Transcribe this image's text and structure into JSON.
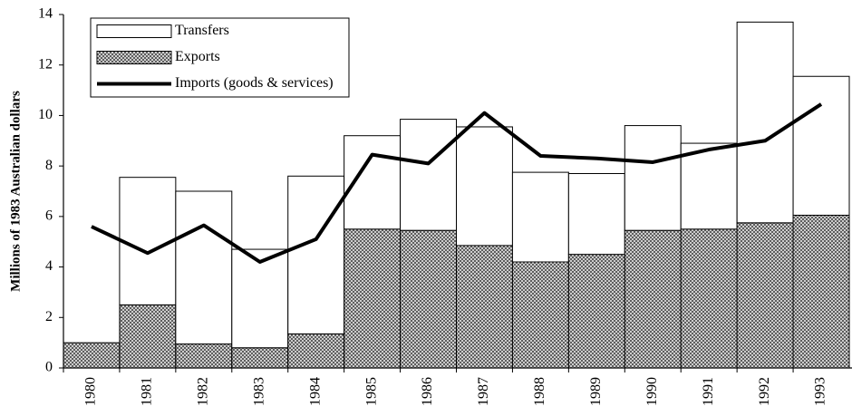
{
  "chart_data": {
    "type": "stacked_bar_line",
    "y_label": "Millions of 1983 Australian dollars",
    "categories": [
      "1980",
      "1981",
      "1982",
      "1983",
      "1984",
      "1985",
      "1986",
      "1987",
      "1988",
      "1989",
      "1990",
      "1991",
      "1992",
      "1993"
    ],
    "series": [
      {
        "name": "Transfers",
        "color": "#ffffff",
        "kind": "bar",
        "values": [
          0,
          5.05,
          6.05,
          3.9,
          6.25,
          3.7,
          4.4,
          4.7,
          3.55,
          3.2,
          4.15,
          3.4,
          7.95,
          5.5
        ]
      },
      {
        "name": "Exports",
        "color": "#555555",
        "kind": "bar",
        "values": [
          1.0,
          2.5,
          0.95,
          0.8,
          1.35,
          5.5,
          5.45,
          4.85,
          4.2,
          4.5,
          5.45,
          5.5,
          5.75,
          6.05
        ]
      },
      {
        "name": "Imports (goods & services)",
        "color": "#000000",
        "kind": "line",
        "values": [
          5.6,
          4.55,
          5.65,
          4.2,
          5.1,
          8.45,
          8.1,
          10.1,
          8.4,
          8.3,
          8.15,
          8.65,
          9.0,
          10.45
        ]
      }
    ],
    "ylim": [
      0,
      14
    ],
    "yticks": [
      0,
      2,
      4,
      6,
      8,
      10,
      12,
      14
    ],
    "grid": false,
    "legend": "upper left"
  }
}
